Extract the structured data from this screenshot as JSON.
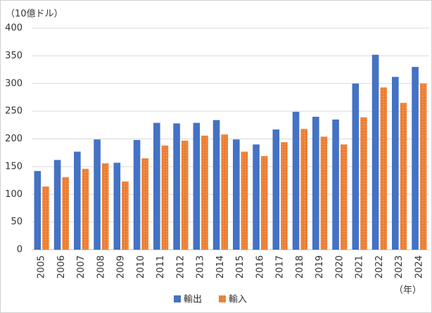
{
  "chart_data": {
    "type": "bar",
    "y_unit": "（10億ドル）",
    "x_unit": "（年）",
    "categories": [
      "2005",
      "2006",
      "2007",
      "2008",
      "2009",
      "2010",
      "2011",
      "2012",
      "2013",
      "2014",
      "2015",
      "2016",
      "2017",
      "2018",
      "2019",
      "2020",
      "2021",
      "2022",
      "2023",
      "2024"
    ],
    "series": [
      {
        "name": "輸出",
        "color": "#4472c4",
        "values": [
          142,
          162,
          177,
          199,
          157,
          198,
          229,
          228,
          229,
          234,
          199,
          190,
          217,
          249,
          240,
          235,
          300,
          352,
          312,
          330
        ]
      },
      {
        "name": "輸入",
        "color": "#ed7d31",
        "values": [
          114,
          131,
          146,
          156,
          123,
          165,
          188,
          197,
          206,
          208,
          177,
          169,
          194,
          218,
          204,
          190,
          239,
          293,
          265,
          300
        ]
      }
    ],
    "ylim": [
      0,
      400
    ],
    "yticks": [
      0,
      50,
      100,
      150,
      200,
      250,
      300,
      350,
      400
    ],
    "grid": true
  }
}
